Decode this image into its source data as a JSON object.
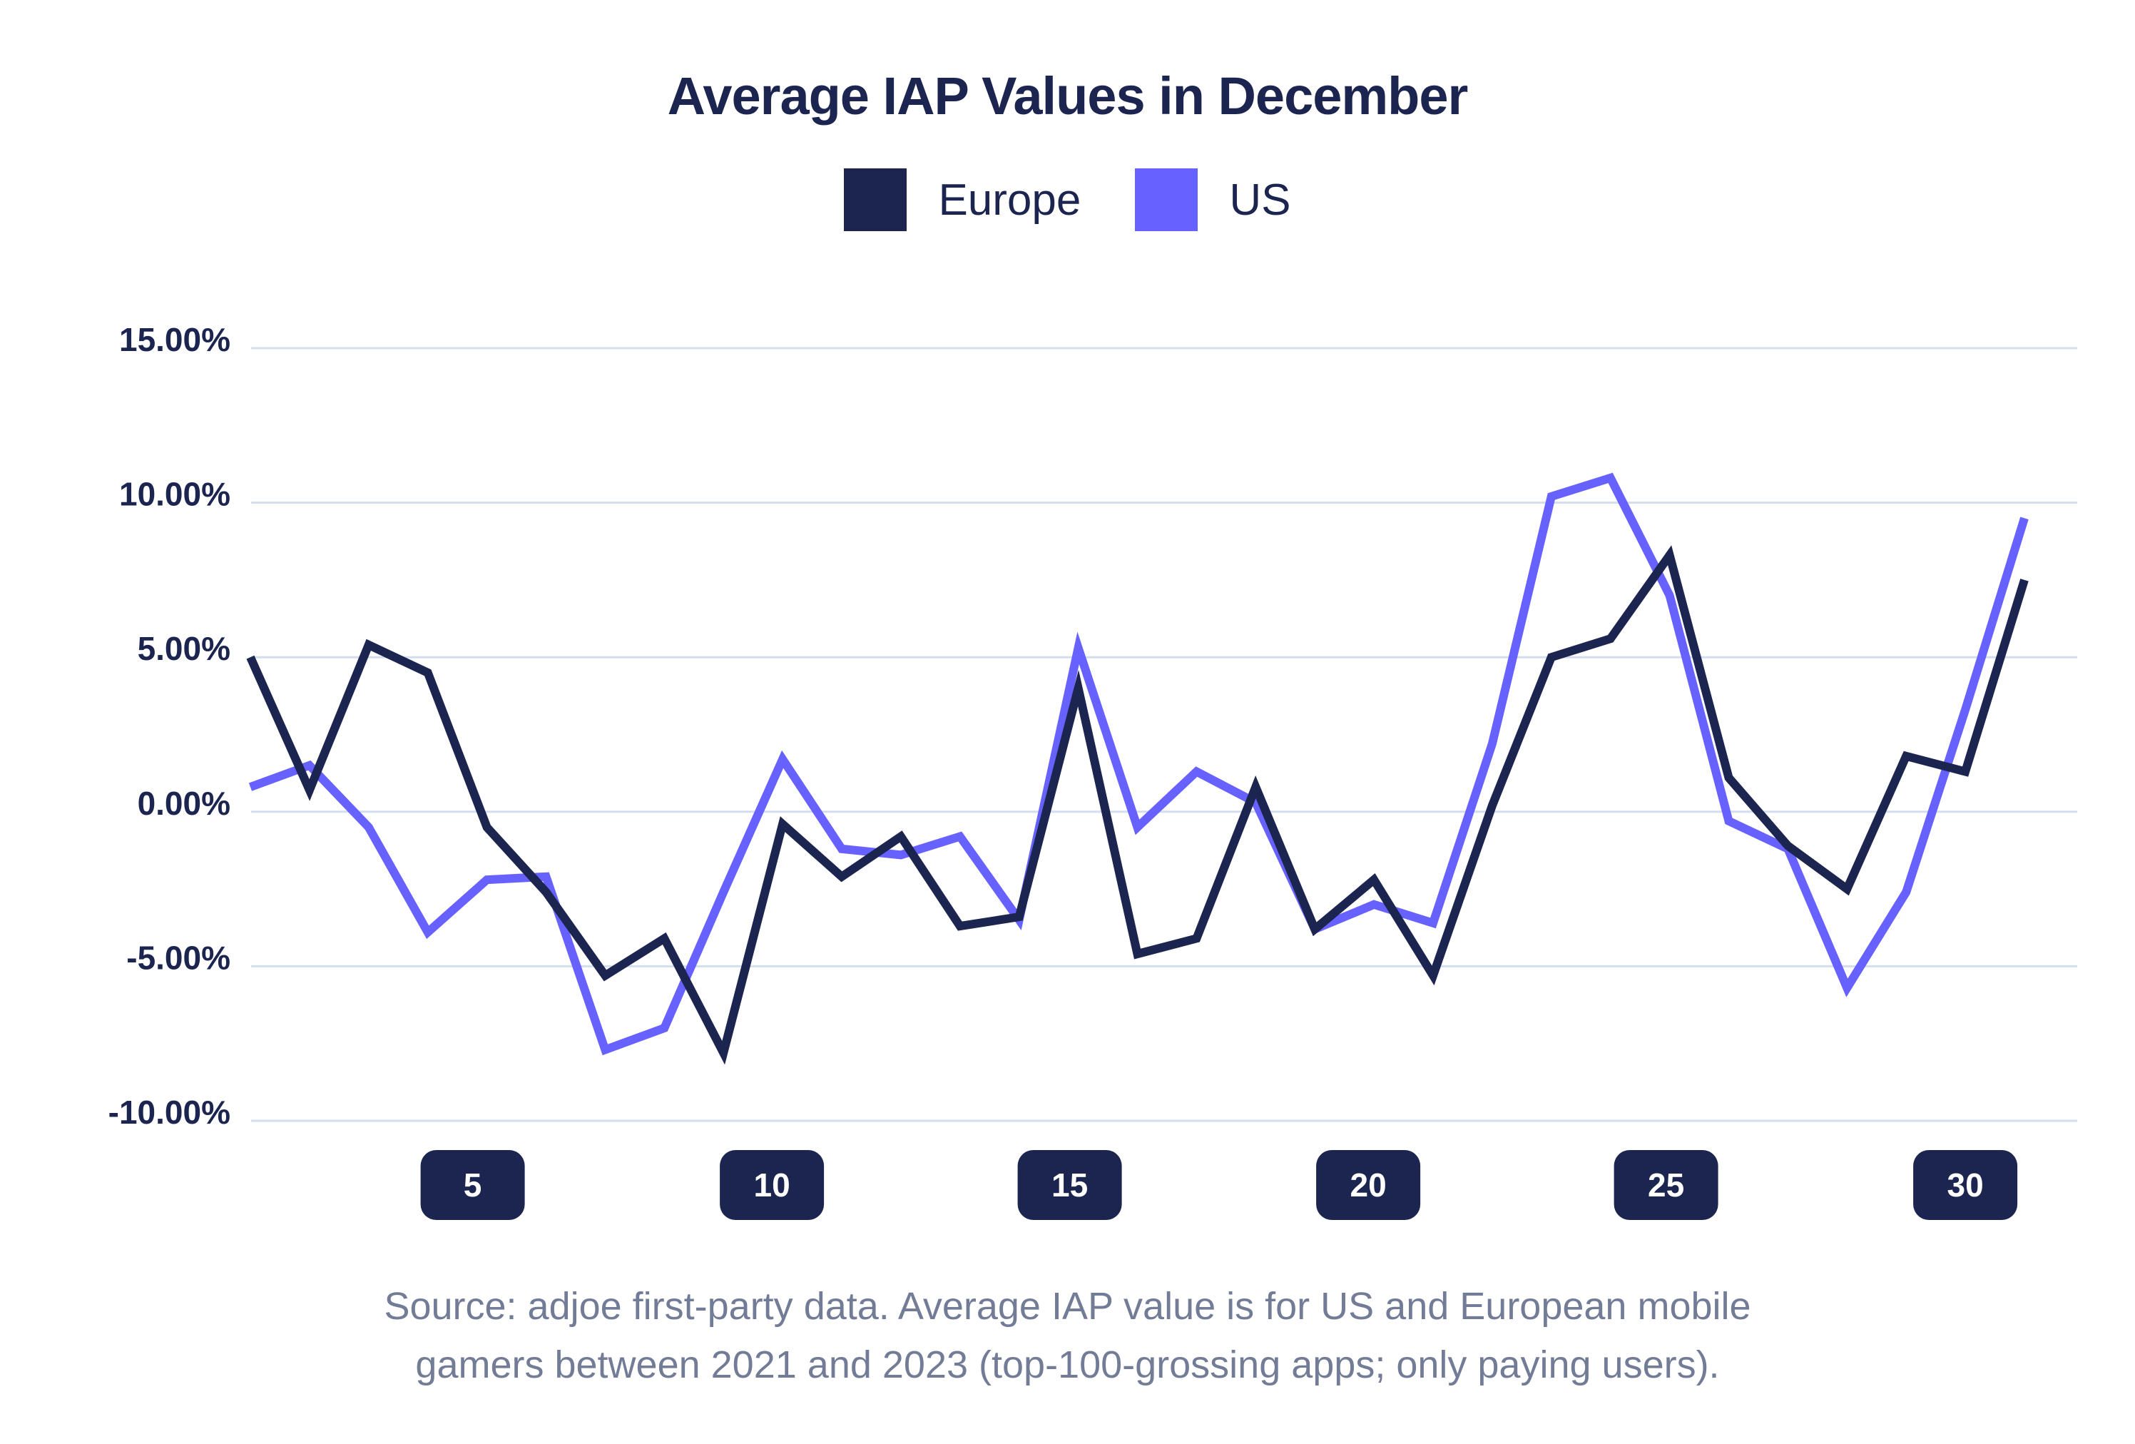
{
  "chart_data": {
    "type": "line",
    "title": "Average IAP Values in December",
    "xlabel": "",
    "ylabel": "",
    "x": [
      1,
      2,
      3,
      4,
      5,
      6,
      7,
      8,
      9,
      10,
      11,
      12,
      13,
      14,
      15,
      16,
      17,
      18,
      19,
      20,
      21,
      22,
      23,
      24,
      25,
      26,
      27,
      28,
      29,
      30,
      31
    ],
    "x_tick_labels": [
      "5",
      "10",
      "15",
      "20",
      "25",
      "30"
    ],
    "x_ticks": [
      5,
      10,
      15,
      20,
      25,
      30
    ],
    "y_tick_labels": [
      "15.00%",
      "10.00%",
      "5.00%",
      "0.00%",
      "-5.00%",
      "-10.00%"
    ],
    "y_ticks": [
      15,
      10,
      5,
      0,
      -5,
      -10
    ],
    "ylim": [
      -10,
      15
    ],
    "grid": "horizontal",
    "legend_position": "top-center",
    "series": [
      {
        "name": "Europe",
        "color": "#1b2550",
        "values": [
          5.0,
          0.7,
          5.4,
          4.5,
          -0.5,
          -2.6,
          -5.3,
          -4.1,
          -7.8,
          -0.4,
          -2.1,
          -0.8,
          -3.7,
          -3.4,
          4.0,
          -4.6,
          -4.1,
          0.8,
          -3.8,
          -2.2,
          -5.3,
          0.2,
          5.0,
          5.6,
          8.3,
          1.1,
          -1.1,
          -2.5,
          1.8,
          1.3,
          7.5
        ]
      },
      {
        "name": "US",
        "color": "#6661ff",
        "values": [
          0.8,
          1.5,
          -0.5,
          -3.9,
          -2.2,
          -2.1,
          -7.7,
          -7.0,
          -2.6,
          1.7,
          -1.2,
          -1.4,
          -0.8,
          -3.5,
          5.3,
          -0.5,
          1.3,
          0.3,
          -3.8,
          -3.0,
          -3.6,
          2.2,
          10.2,
          10.8,
          7.0,
          -0.3,
          -1.2,
          -5.7,
          -2.6,
          3.3,
          9.5
        ]
      }
    ]
  },
  "legend": {
    "items": [
      {
        "label": "Europe",
        "color": "#1b2550"
      },
      {
        "label": "US",
        "color": "#6661ff"
      }
    ]
  },
  "source": {
    "line1": "Source: adjoe first-party data. Average IAP value is for US and European mobile",
    "line2": "gamers between 2021 and 2023 (top-100-grossing apps; only paying users)."
  },
  "colors": {
    "grid": "#d4deef",
    "badge_bg": "#1b2550",
    "badge_text": "#ffffff",
    "axis_text": "#1b2550"
  }
}
